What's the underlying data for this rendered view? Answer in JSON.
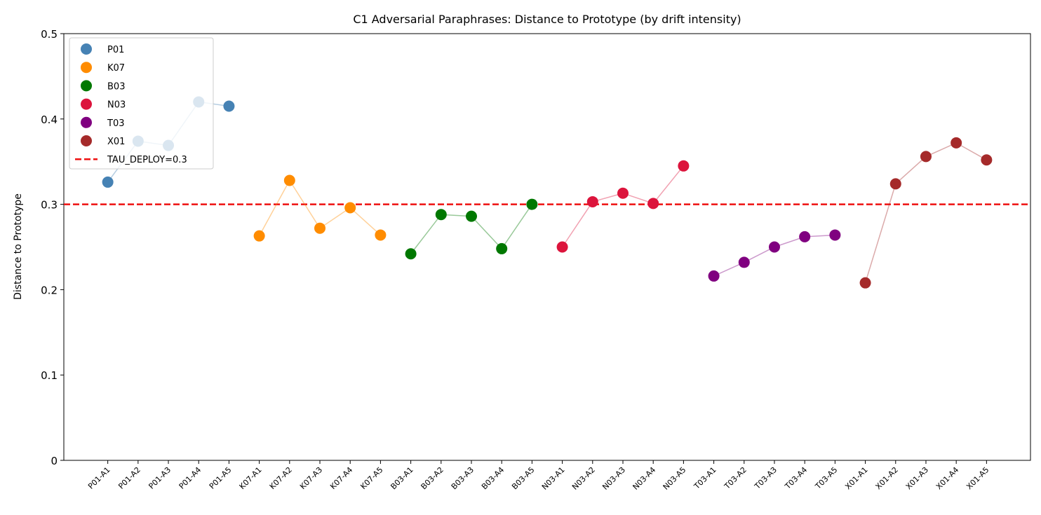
{
  "chart_data": {
    "type": "line",
    "title": "C1 Adversarial Paraphrases: Distance to Prototype (by drift intensity)",
    "ylabel": "Distance to Prototype",
    "categories": [
      "P01-A1",
      "P01-A2",
      "P01-A3",
      "P01-A4",
      "P01-A5",
      "K07-A1",
      "K07-A2",
      "K07-A3",
      "K07-A4",
      "K07-A5",
      "B03-A1",
      "B03-A2",
      "B03-A3",
      "B03-A4",
      "B03-A5",
      "N03-A1",
      "N03-A2",
      "N03-A3",
      "N03-A4",
      "N03-A5",
      "T03-A1",
      "T03-A2",
      "T03-A3",
      "T03-A4",
      "T03-A5",
      "X01-A1",
      "X01-A2",
      "X01-A3",
      "X01-A4",
      "X01-A5"
    ],
    "series": [
      {
        "name": "P01",
        "color": "#4682b4",
        "values": [
          0.326,
          0.374,
          0.369,
          0.42,
          0.415,
          null,
          null,
          null,
          null,
          null,
          null,
          null,
          null,
          null,
          null,
          null,
          null,
          null,
          null,
          null,
          null,
          null,
          null,
          null,
          null,
          null,
          null,
          null,
          null,
          null
        ]
      },
      {
        "name": "K07",
        "color": "#ff8c00",
        "values": [
          null,
          null,
          null,
          null,
          null,
          0.263,
          0.328,
          0.272,
          0.296,
          0.264,
          null,
          null,
          null,
          null,
          null,
          null,
          null,
          null,
          null,
          null,
          null,
          null,
          null,
          null,
          null,
          null,
          null,
          null,
          null,
          null
        ]
      },
      {
        "name": "B03",
        "color": "#007800",
        "values": [
          null,
          null,
          null,
          null,
          null,
          null,
          null,
          null,
          null,
          null,
          0.242,
          0.288,
          0.286,
          0.248,
          0.3,
          null,
          null,
          null,
          null,
          null,
          null,
          null,
          null,
          null,
          null,
          null,
          null,
          null,
          null,
          null
        ]
      },
      {
        "name": "N03",
        "color": "#dc143c",
        "values": [
          null,
          null,
          null,
          null,
          null,
          null,
          null,
          null,
          null,
          null,
          null,
          null,
          null,
          null,
          null,
          0.25,
          0.303,
          0.313,
          0.301,
          0.345,
          null,
          null,
          null,
          null,
          null,
          null,
          null,
          null,
          null,
          null
        ]
      },
      {
        "name": "T03",
        "color": "#800080",
        "values": [
          null,
          null,
          null,
          null,
          null,
          null,
          null,
          null,
          null,
          null,
          null,
          null,
          null,
          null,
          null,
          null,
          null,
          null,
          null,
          null,
          0.216,
          0.232,
          0.25,
          0.262,
          0.264,
          null,
          null,
          null,
          null,
          null
        ]
      },
      {
        "name": "X01",
        "color": "#a52a2a",
        "values": [
          null,
          null,
          null,
          null,
          null,
          null,
          null,
          null,
          null,
          null,
          null,
          null,
          null,
          null,
          null,
          null,
          null,
          null,
          null,
          null,
          null,
          null,
          null,
          null,
          null,
          0.208,
          0.324,
          0.356,
          0.372,
          0.352
        ]
      }
    ],
    "threshold": {
      "name": "TAU_DEPLOY=0.3",
      "value": 0.3,
      "color": "#ee1111"
    },
    "ylim": [
      0,
      0.5
    ],
    "yticks": [
      0,
      0.1,
      0.2,
      0.3,
      0.4,
      0.5
    ],
    "legend": "upper left"
  }
}
